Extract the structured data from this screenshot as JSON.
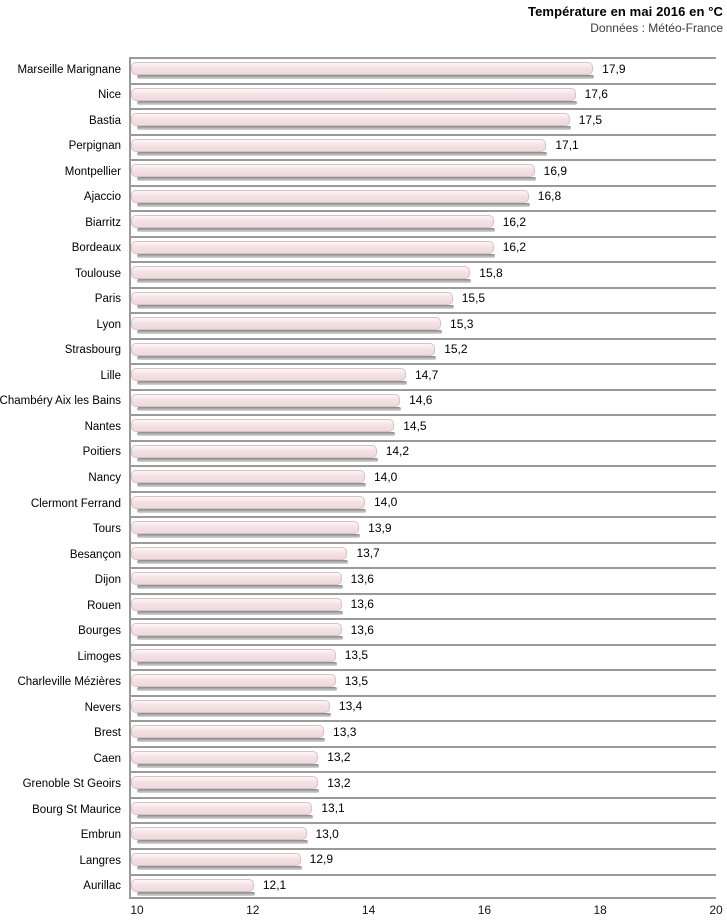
{
  "header": {
    "title": "Température en mai 2016 en °C",
    "subtitle": "Données : Météo-France"
  },
  "chart_data": {
    "type": "bar",
    "orientation": "horizontal",
    "title": "Température en mai 2016 en °C",
    "subtitle": "Données : Météo-France",
    "categories": [
      "Marseille Marignane",
      "Nice",
      "Bastia",
      "Perpignan",
      "Montpellier",
      "Ajaccio",
      "Biarritz",
      "Bordeaux",
      "Toulouse",
      "Paris",
      "Lyon",
      "Strasbourg",
      "Lille",
      "Chambéry Aix les Bains",
      "Nantes",
      "Poitiers",
      "Nancy",
      "Clermont Ferrand",
      "Tours",
      "Besançon",
      "Dijon",
      "Rouen",
      "Bourges",
      "Limoges",
      "Charleville Mézières",
      "Nevers",
      "Brest",
      "Caen",
      "Grenoble St Geoirs",
      "Bourg St Maurice",
      "Embrun",
      "Langres",
      "Aurillac"
    ],
    "values": [
      17.9,
      17.6,
      17.5,
      17.1,
      16.9,
      16.8,
      16.2,
      16.2,
      15.8,
      15.5,
      15.3,
      15.2,
      14.7,
      14.6,
      14.5,
      14.2,
      14.0,
      14.0,
      13.9,
      13.7,
      13.6,
      13.6,
      13.6,
      13.5,
      13.5,
      13.4,
      13.3,
      13.2,
      13.2,
      13.1,
      13.0,
      12.9,
      12.1
    ],
    "value_labels": [
      "17,9",
      "17,6",
      "17,5",
      "17,1",
      "16,9",
      "16,8",
      "16,2",
      "16,2",
      "15,8",
      "15,5",
      "15,3",
      "15,2",
      "14,7",
      "14,6",
      "14,5",
      "14,2",
      "14,0",
      "14,0",
      "13,9",
      "13,7",
      "13,6",
      "13,6",
      "13,6",
      "13,5",
      "13,5",
      "13,4",
      "13,3",
      "13,2",
      "13,2",
      "13,1",
      "13,0",
      "12,9",
      "12,1"
    ],
    "xlabel": "",
    "ylabel": "",
    "xlim": [
      10,
      20
    ],
    "x_ticks": [
      "10",
      "12",
      "14",
      "16",
      "18",
      "20"
    ],
    "grid": "horizontal category separators only, no vertical gridlines",
    "legend": "none",
    "bar_fill_color": "#f2dfe1",
    "bar_border_color": "#d8c2c6",
    "bar_shadow_color": "#878787",
    "axis_line_color": "#9a9a9a",
    "background_color": "#ffffff"
  }
}
